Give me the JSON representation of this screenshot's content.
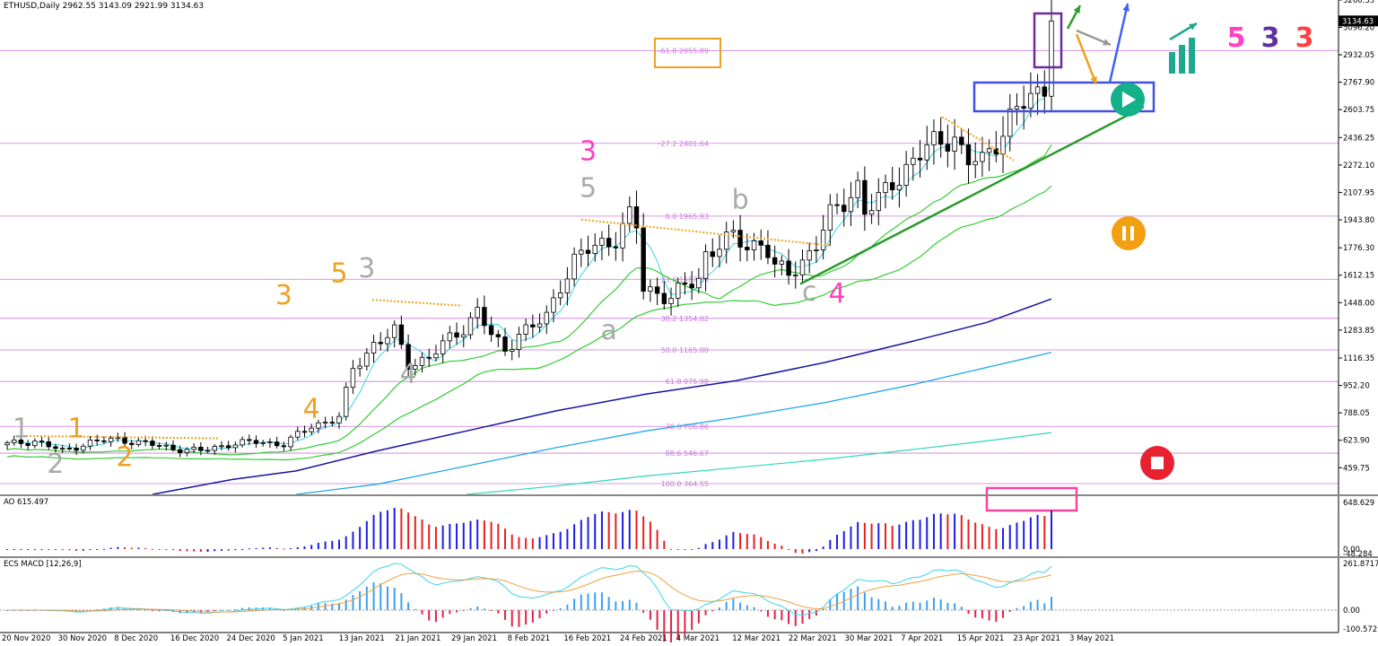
{
  "chart_data": {
    "type": "candlestick",
    "symbol_header": "ETHUSD,Daily  2962.55 3143.09 2921.99 3134.63",
    "price_axis": {
      "ylim": [
        300,
        3260
      ],
      "ticks": [
        "3260.35",
        "3096.20",
        "2932.05",
        "2767.90",
        "2603.75",
        "2436.25",
        "2272.10",
        "2107.95",
        "1943.80",
        "1776.30",
        "1612.15",
        "1448.00",
        "1283.85",
        "1116.35",
        "952.20",
        "788.05",
        "623.90",
        "459.75"
      ],
      "tick_values": [
        3260.35,
        3096.2,
        2932.05,
        2767.9,
        2603.75,
        2436.25,
        2272.1,
        2107.95,
        1943.8,
        1776.3,
        1612.15,
        1448.0,
        1283.85,
        1116.35,
        952.2,
        788.05,
        623.9,
        459.75
      ],
      "current_price": "3134.63"
    },
    "date_axis": [
      "20 Nov 2020",
      "30 Nov 2020",
      "8 Dec 2020",
      "16 Dec 2020",
      "24 Dec 2020",
      "5 Jan 2021",
      "13 Jan 2021",
      "21 Jan 2021",
      "29 Jan 2021",
      "8 Feb 2021",
      "16 Feb 2021",
      "24 Feb 2021",
      "4 Mar 2021",
      "12 Mar 2021",
      "22 Mar 2021",
      "30 Mar 2021",
      "7 Apr 2021",
      "15 Apr 2021",
      "23 Apr 2021",
      "3 May 2021"
    ],
    "fib_levels": [
      {
        "label": "-61.8 2955.89",
        "value": 2955.89
      },
      {
        "label": "-27.2 2401.64",
        "value": 2401.64
      },
      {
        "label": "0.0 1965.93",
        "value": 1965.93
      },
      {
        "label": "23.6 1587.89",
        "value": 1587.89
      },
      {
        "label": "38.2 1354.02",
        "value": 1354.02
      },
      {
        "label": "50.0 1165.00",
        "value": 1165.0
      },
      {
        "label": "61.8 975.98",
        "value": 975.98
      },
      {
        "label": "78.6 706.86",
        "value": 706.86
      },
      {
        "label": "88.6 546.67",
        "value": 546.67
      },
      {
        "label": "100.0 364.55",
        "value": 364.55
      }
    ],
    "price_path": [
      [
        0,
        600
      ],
      [
        4,
        620
      ],
      [
        8,
        560
      ],
      [
        12,
        612
      ],
      [
        16,
        630
      ],
      [
        20,
        605
      ],
      [
        24,
        575
      ],
      [
        28,
        560
      ],
      [
        32,
        600
      ],
      [
        36,
        615
      ],
      [
        40,
        600
      ],
      [
        44,
        710
      ],
      [
        48,
        760
      ],
      [
        50,
        1050
      ],
      [
        53,
        1200
      ],
      [
        56,
        1270
      ],
      [
        58,
        1080
      ],
      [
        61,
        1120
      ],
      [
        64,
        1230
      ],
      [
        66,
        1300
      ],
      [
        68,
        1400
      ],
      [
        70,
        1250
      ],
      [
        72,
        1160
      ],
      [
        74,
        1270
      ],
      [
        76,
        1300
      ],
      [
        78,
        1360
      ],
      [
        80,
        1560
      ],
      [
        82,
        1700
      ],
      [
        84,
        1760
      ],
      [
        86,
        1800
      ],
      [
        88,
        1840
      ],
      [
        89,
        1900
      ],
      [
        90,
        1960
      ],
      [
        91,
        1900
      ],
      [
        92,
        1530
      ],
      [
        94,
        1510
      ],
      [
        96,
        1480
      ],
      [
        98,
        1540
      ],
      [
        100,
        1590
      ],
      [
        101,
        1740
      ],
      [
        103,
        1800
      ],
      [
        105,
        1830
      ],
      [
        107,
        1790
      ],
      [
        109,
        1810
      ],
      [
        110,
        1760
      ],
      [
        111,
        1650
      ],
      [
        113,
        1620
      ],
      [
        115,
        1700
      ],
      [
        117,
        1800
      ],
      [
        119,
        1960
      ],
      [
        121,
        2060
      ],
      [
        123,
        2150
      ],
      [
        124,
        1990
      ],
      [
        126,
        2050
      ],
      [
        128,
        2180
      ],
      [
        130,
        2250
      ],
      [
        132,
        2330
      ],
      [
        134,
        2400
      ],
      [
        136,
        2450
      ],
      [
        137,
        2440
      ],
      [
        138,
        2340
      ],
      [
        139,
        2280
      ],
      [
        140,
        2300
      ],
      [
        141,
        2290
      ],
      [
        143,
        2430
      ],
      [
        145,
        2540
      ],
      [
        147,
        2640
      ],
      [
        149,
        2700
      ],
      [
        150,
        2760
      ],
      [
        151,
        3134
      ]
    ],
    "candles_total": 152,
    "wave_labels": [
      {
        "text": "1",
        "color": "#aaaaaa",
        "i": 2,
        "price": 640
      },
      {
        "text": "1",
        "color": "#f0a020",
        "i": 10,
        "price": 640
      },
      {
        "text": "2",
        "color": "#aaaaaa",
        "i": 7,
        "price": 430
      },
      {
        "text": "2",
        "color": "#f0a020",
        "i": 17,
        "price": 470
      },
      {
        "text": "3",
        "color": "#f0a020",
        "i": 40,
        "price": 1440
      },
      {
        "text": "4",
        "color": "#f0a020",
        "i": 44,
        "price": 760
      },
      {
        "text": "5",
        "color": "#f0a020",
        "i": 48,
        "price": 1570
      },
      {
        "text": "3",
        "color": "#aaaaaa",
        "i": 52,
        "price": 1600
      },
      {
        "text": "4",
        "color": "#aaaaaa",
        "i": 58,
        "price": 970
      },
      {
        "text": "3",
        "color": "#ff40c0",
        "i": 84,
        "price": 2300
      },
      {
        "text": "5",
        "color": "#aaaaaa",
        "i": 84,
        "price": 2080
      },
      {
        "text": "a",
        "color": "#aaaaaa",
        "i": 87,
        "price": 1230
      },
      {
        "text": "b",
        "color": "#aaaaaa",
        "i": 106,
        "price": 2010
      },
      {
        "text": "c",
        "color": "#aaaaaa",
        "i": 116,
        "price": 1460
      },
      {
        "text": "4",
        "color": "#ff40c0",
        "i": 120,
        "price": 1450
      }
    ],
    "legend_waves": [
      {
        "text": "5",
        "color": "#ff40c0"
      },
      {
        "text": "3",
        "color": "#6030a0"
      },
      {
        "text": "3",
        "color": "#ff4040"
      }
    ],
    "ao_indicator": {
      "label": "AO 615.497",
      "ticks": [
        "648.629",
        "0.00",
        "-48.284"
      ]
    },
    "macd_indicator": {
      "label": "ECS MACD [12,26,9]",
      "ticks": [
        "261.8717",
        "0.00",
        "-100.5729"
      ]
    },
    "colors": {
      "bull_candle": "#ffffff",
      "bear_candle": "#000000",
      "ma_light": "#3ad4e8",
      "ma_green": "#33cc33",
      "ma_blue": "#1414a0",
      "ma_cyan": "#1ea8e8",
      "ma_teal": "#2ed8b8",
      "fib": "#cc77dd",
      "ao_up": "#1e1ee6",
      "ao_down": "#e62020",
      "macd_hist_up": "#3aa0f0",
      "macd_hist_down": "#e62048",
      "play": "#14b08a",
      "pause": "#f0a010",
      "stop": "#e82030"
    }
  }
}
